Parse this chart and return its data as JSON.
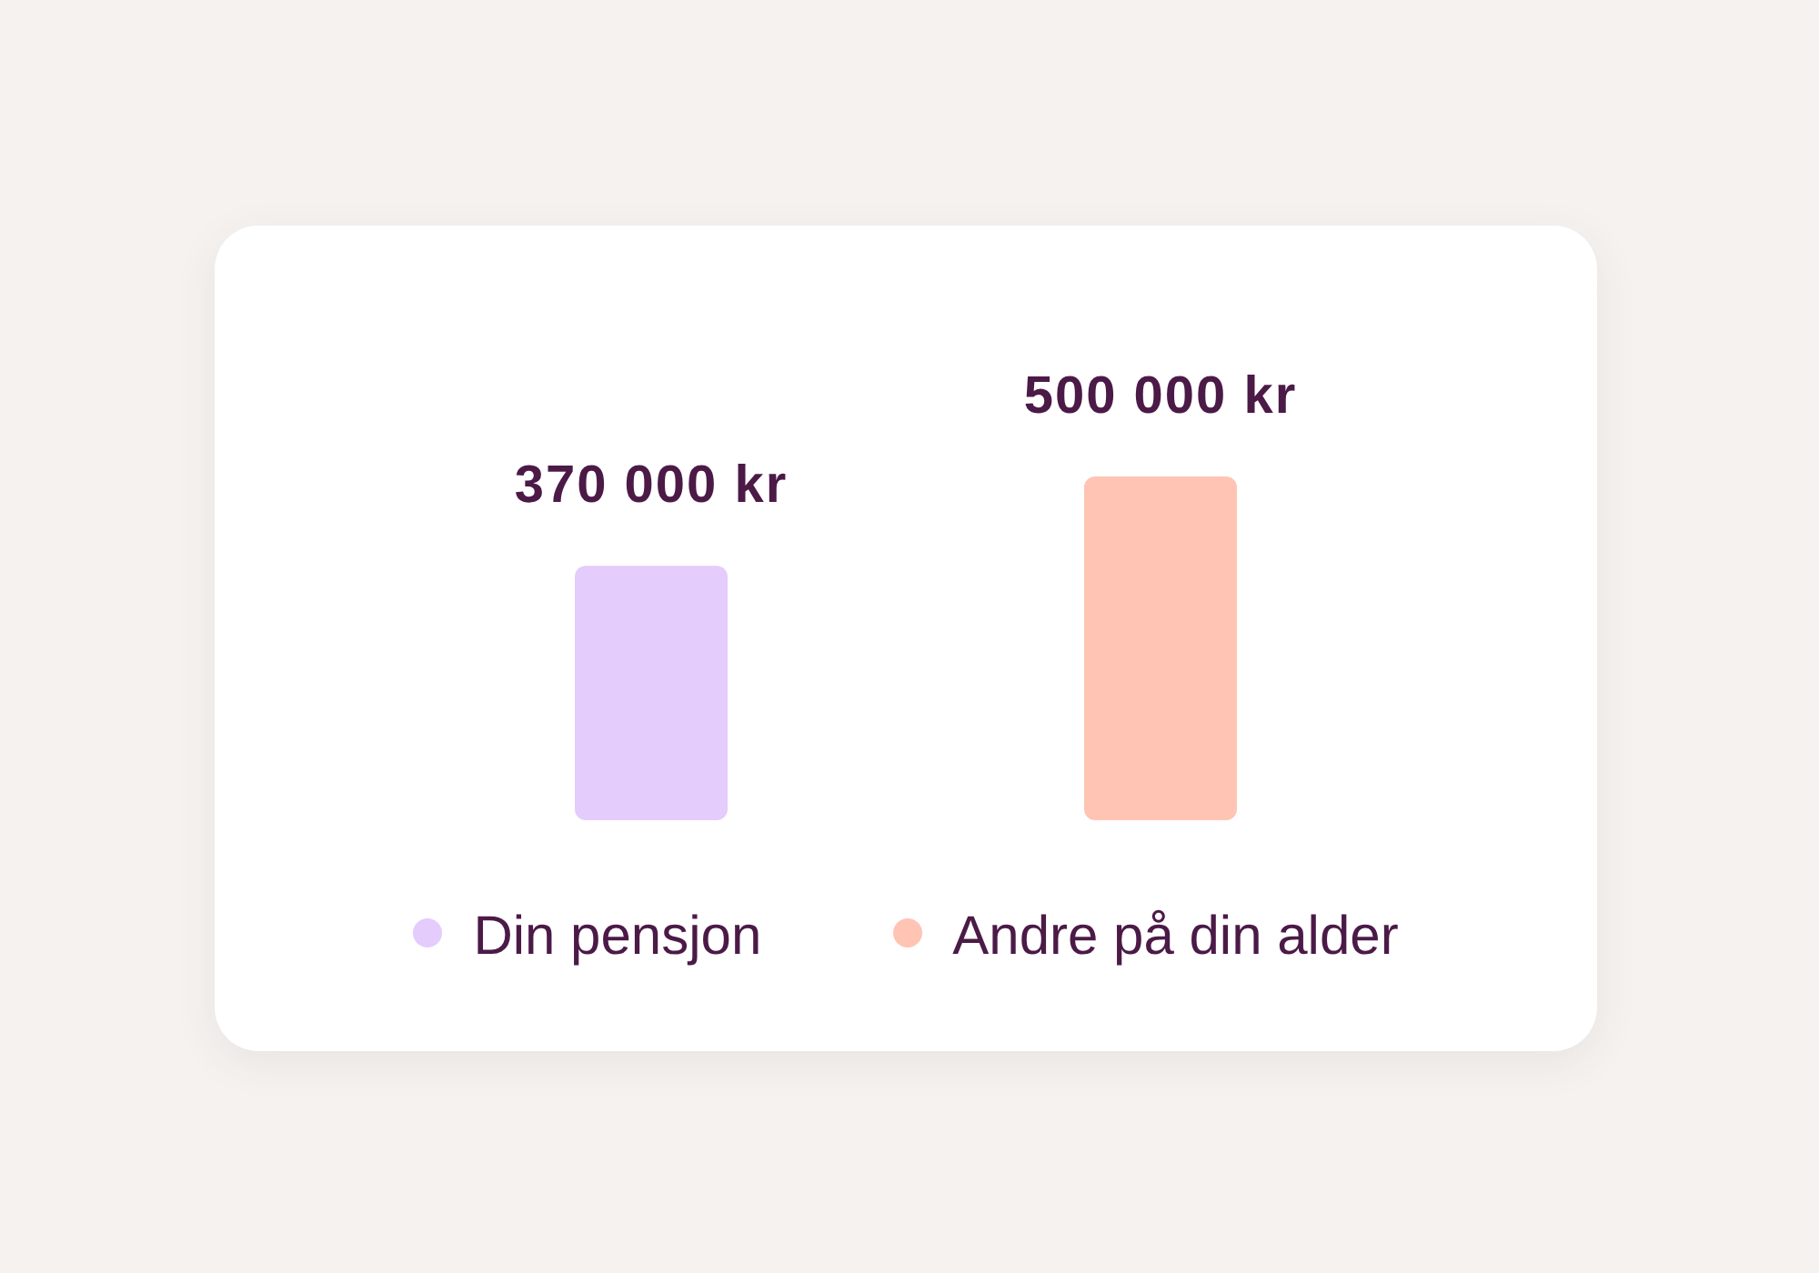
{
  "chart_data": {
    "type": "bar",
    "categories": [
      "Din pensjon",
      "Andre på din alder"
    ],
    "values": [
      370000,
      500000
    ],
    "colors": [
      "#e4ccfd",
      "#ffc4b3"
    ],
    "value_labels": [
      "370 000 kr",
      "500 000 kr"
    ]
  }
}
